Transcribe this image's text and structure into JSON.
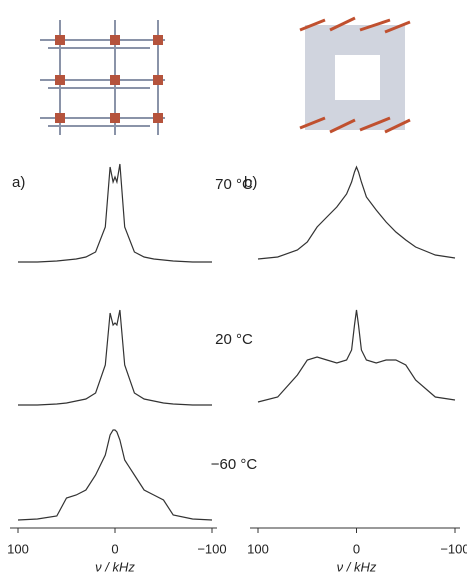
{
  "chart_data": [
    {
      "type": "line",
      "label": "a)",
      "xlabel": "ν / kHz",
      "x": [
        100,
        80,
        60,
        50,
        40,
        30,
        20,
        10,
        5,
        2,
        0,
        -2,
        -5,
        -10,
        -20,
        -30,
        -40,
        -50,
        -60,
        -80,
        -100
      ],
      "xlim": [
        100,
        -100
      ],
      "xticks": [
        100,
        0,
        {
          "value": -100,
          "label": "−100"
        }
      ],
      "ylim": [
        0,
        100
      ],
      "series": [
        {
          "color": "#333333",
          "values": [
            0,
            0,
            1,
            2,
            3,
            5,
            10,
            35,
            95,
            80,
            85,
            80,
            98,
            35,
            10,
            5,
            3,
            2,
            1,
            0,
            0
          ]
        },
        {
          "color": "#333333",
          "values": [
            0,
            0,
            1,
            2,
            4,
            6,
            12,
            40,
            92,
            80,
            82,
            80,
            95,
            40,
            12,
            6,
            4,
            2,
            1,
            0,
            0
          ]
        },
        {
          "color": "#333333",
          "values": [
            0,
            1,
            4,
            22,
            25,
            30,
            45,
            65,
            85,
            90,
            90,
            88,
            80,
            60,
            45,
            30,
            25,
            20,
            5,
            1,
            0
          ]
        }
      ]
    },
    {
      "type": "line",
      "label": "b)",
      "xlabel": "ν / kHz",
      "x": [
        100,
        80,
        60,
        50,
        40,
        30,
        20,
        10,
        5,
        2,
        0,
        -2,
        -5,
        -10,
        -20,
        -30,
        -40,
        -50,
        -60,
        -80,
        -100
      ],
      "xlim": [
        100,
        -100
      ],
      "xticks": [
        100,
        0,
        {
          "value": -100,
          "label": "−100"
        }
      ],
      "ylim": [
        0,
        100
      ],
      "series": [
        {
          "color": "#333333",
          "values": [
            3,
            5,
            12,
            20,
            35,
            45,
            55,
            68,
            80,
            90,
            95,
            90,
            80,
            65,
            52,
            40,
            30,
            22,
            15,
            7,
            4
          ]
        },
        {
          "color": "#333333",
          "values": [
            3,
            8,
            30,
            45,
            48,
            45,
            42,
            45,
            55,
            80,
            95,
            80,
            55,
            45,
            42,
            45,
            45,
            40,
            25,
            8,
            5
          ]
        }
      ]
    }
  ],
  "temperatures": [
    "70 °C",
    "20 °C",
    "−60 °C"
  ]
}
